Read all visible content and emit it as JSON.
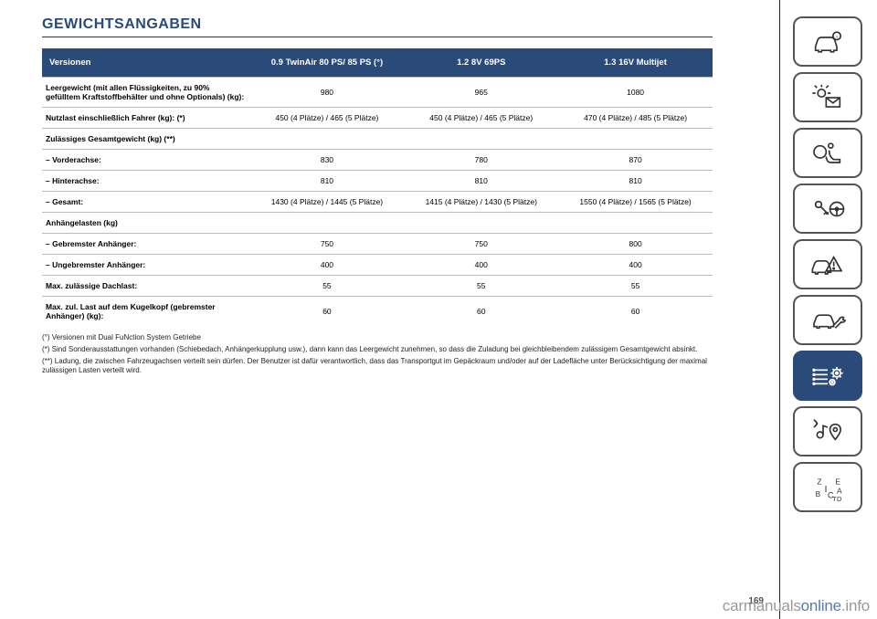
{
  "title": "GEWICHTSANGABEN",
  "table": {
    "headers": {
      "versions": "Versionen",
      "col1": "0.9 TwinAir 80 PS/ 85 PS (°)",
      "col2": "1.2 8V 69PS",
      "col3": "1.3 16V Multijet"
    },
    "rows": [
      {
        "label": "Leergewicht (mit allen Flüssigkeiten, zu 90% gefülltem Kraftstoffbehälter und ohne Optionals) (kg):",
        "c1": "980",
        "c2": "965",
        "c3": "1080"
      },
      {
        "label": "Nutzlast einschließlich Fahrer (kg): (*)",
        "c1": "450 (4 Plätze) / 465 (5 Plätze)",
        "c2": "450 (4 Plätze) / 465 (5 Plätze)",
        "c3": "470 (4 Plätze) / 485 (5 Plätze)"
      },
      {
        "label": "Zulässiges Gesamtgewicht (kg) (**)",
        "c1": "",
        "c2": "",
        "c3": ""
      },
      {
        "label": "– Vorderachse:",
        "c1": "830",
        "c2": "780",
        "c3": "870"
      },
      {
        "label": "– Hinterachse:",
        "c1": "810",
        "c2": "810",
        "c3": "810"
      },
      {
        "label": "– Gesamt:",
        "c1": "1430 (4 Plätze) / 1445 (5 Plätze)",
        "c2": "1415 (4 Plätze) / 1430 (5 Plätze)",
        "c3": "1550 (4 Plätze) / 1565 (5 Plätze)"
      },
      {
        "label": "Anhängelasten (kg)",
        "c1": "",
        "c2": "",
        "c3": ""
      },
      {
        "label": "– Gebremster Anhänger:",
        "c1": "750",
        "c2": "750",
        "c3": "800"
      },
      {
        "label": "– Ungebremster Anhänger:",
        "c1": "400",
        "c2": "400",
        "c3": "400"
      },
      {
        "label": "Max. zulässige Dachlast:",
        "c1": "55",
        "c2": "55",
        "c3": "55"
      },
      {
        "label": "Max. zul. Last auf dem Kugelkopf (gebremster Anhänger) (kg):",
        "c1": "60",
        "c2": "60",
        "c3": "60"
      }
    ]
  },
  "notes": [
    "(°) Versionen mit Dual FuNction System Getriebe",
    "(*) Sind Sonderausstattungen vorhanden (Schiebedach, Anhängerkupplung usw.), dann kann das Leergewicht zunehmen, so dass die Zuladung bei gleichbleibendem zulässigem Gesamtgewicht absinkt.",
    "(**) Ladung, die zwischen Fahrzeugachsen verteilt sein dürfen. Der Benutzer ist dafür verantwortlich, dass das Transportgut im Gepäckraum und/oder auf der Ladefläche unter Berücksichtigung der maximal zulässigen Lasten verteilt wird."
  ],
  "page_number": "169",
  "watermark": {
    "a": "carmanuals",
    "b": "online",
    "c": ".info"
  },
  "sidebar": [
    {
      "name": "car-info-icon",
      "active": false
    },
    {
      "name": "lights-message-icon",
      "active": false
    },
    {
      "name": "airbag-seat-icon",
      "active": false
    },
    {
      "name": "key-steering-icon",
      "active": false
    },
    {
      "name": "car-warning-icon",
      "active": false
    },
    {
      "name": "car-wrench-icon",
      "active": false
    },
    {
      "name": "list-gear-icon",
      "active": true
    },
    {
      "name": "media-nav-icon",
      "active": false
    },
    {
      "name": "index-icon",
      "active": false
    }
  ]
}
